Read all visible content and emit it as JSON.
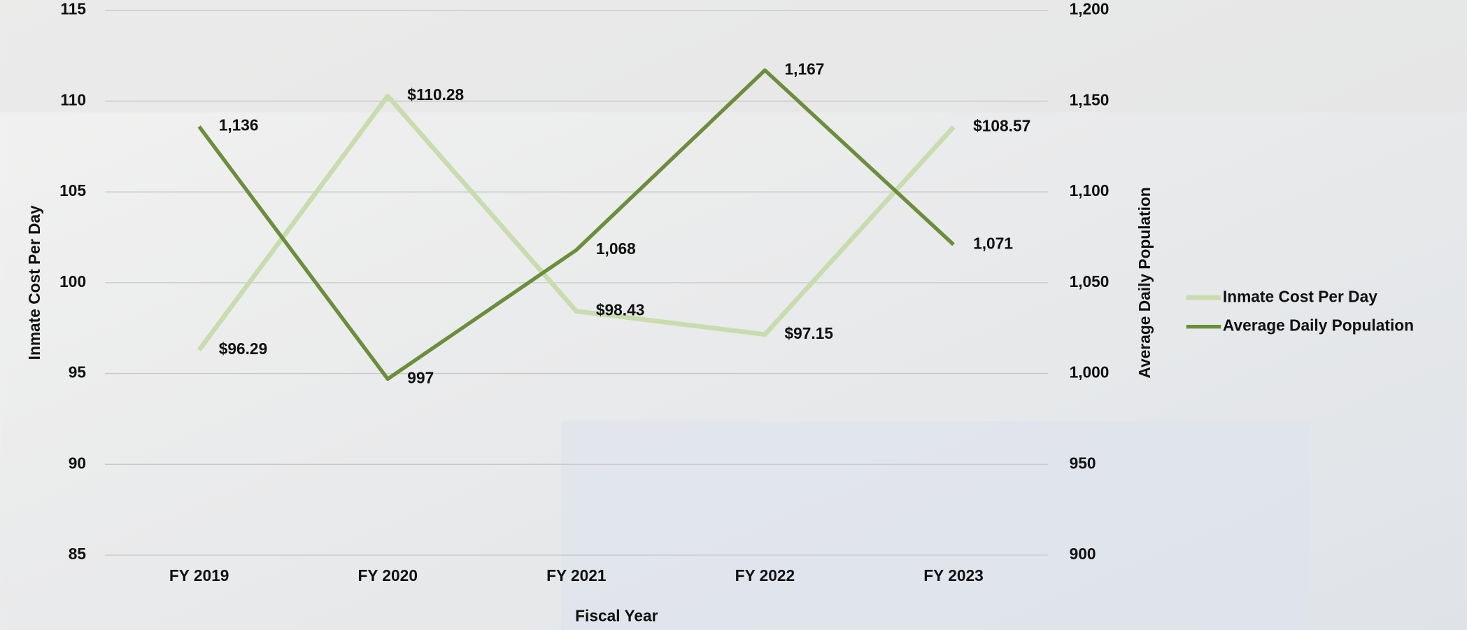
{
  "chart_data": {
    "type": "line",
    "x_label": "Fiscal Year",
    "y_label": "Inmate Cost Per Day",
    "y2_label": "Average Daily Population",
    "categories": [
      "FY 2019",
      "FY 2020",
      "FY 2021",
      "FY 2022",
      "FY 2023"
    ],
    "series": [
      {
        "name": "Inmate Cost Per Day",
        "color": "#c9dcae",
        "values": [
          96.29,
          110.28,
          98.43,
          97.15,
          108.57
        ],
        "value_labels": [
          "$96.29",
          "$110.28",
          "$98.43",
          "$97.15",
          "$108.57"
        ]
      },
      {
        "name": "Average Daily Population",
        "color": "#6a8e3a",
        "axis": "y2",
        "values": [
          1136,
          997,
          1068,
          1167,
          1071
        ],
        "value_labels": [
          "1,136",
          "997",
          "1,068",
          "1,167",
          "1,071"
        ]
      }
    ],
    "ylim": [
      85,
      115
    ],
    "yticks": [
      85,
      90,
      95,
      100,
      105,
      110,
      115
    ],
    "y2lim": [
      900,
      1200
    ],
    "y2ticks": [
      900,
      950,
      {
        "value": 1000,
        "label": "1,000"
      },
      {
        "value": 1050,
        "label": "1,050"
      },
      {
        "value": 1100,
        "label": "1,100"
      },
      {
        "value": 1150,
        "label": "1,150"
      },
      {
        "value": 1200,
        "label": "1,200"
      }
    ],
    "grid": true,
    "legend": "right"
  }
}
